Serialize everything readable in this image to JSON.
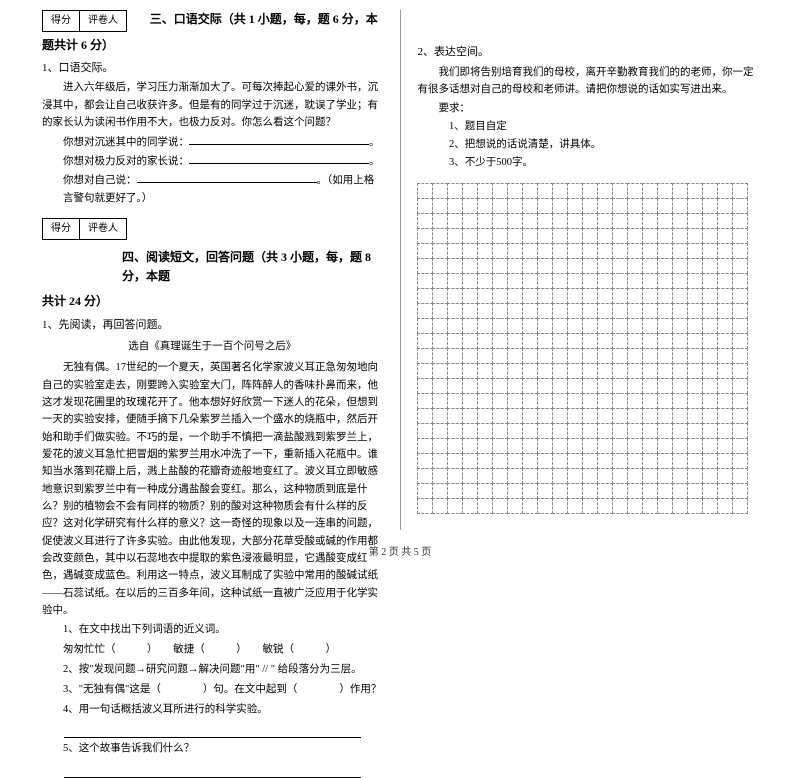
{
  "scoreBox": {
    "c1": "得分",
    "c2": "评卷人"
  },
  "section3": {
    "title": "三、口语交际（共 1 小题，每，题 6 分，本题共计 6 分）",
    "q1": "1、口语交际。",
    "intro": "进入六年级后，学习压力渐渐加大了。可每次捧起心爱的课外书，沉浸其中，都会让自己收获许多。但是有的同学过于沉迷，耽误了学业；有的家长认为读闲书作用不大，也极力反对。你怎么看这个问题？",
    "line1_label": "你想对沉迷其中的同学说：",
    "line2_label": "你想对极力反对的家长说：",
    "line3_label": "你想对自己说：",
    "line3_suffix": "。（如用上格言警句就更好了。）"
  },
  "section4": {
    "title": "四、阅读短文，回答问题（共 3 小题，每，题 8 分，本题",
    "title_cont": "共计 24 分）",
    "q1": "1、先阅读，再回答问题。",
    "subtitle": "选自《真理诞生于一百个问号之后》",
    "p1": "无独有偶。17世纪的一个夏天，英国著名化学家波义耳正急匆匆地向自己的实验室走去，刚要跨入实验室大门，阵阵醉人的香味扑鼻而来，他这才发现花圃里的玫瑰花开了。他本想好好欣赏一下迷人的花朵，但想到一天的实验安排，便随手摘下几朵紫罗兰插入一个盛水的烧瓶中，然后开始和助手们做实验。不巧的是，一个助手不慎把一滴盐酸溅到紫罗兰上，爱花的波义耳急忙把冒烟的紫罗兰用水冲洗了一下，重新插入花瓶中。谁知当水落到花瓣上后，溅上盐酸的花瓣奇迹般地变红了。波义耳立即敏感地意识到紫罗兰中有一种成分遇盐酸会变红。那么，这种物质到底是什么？别的植物会不会有同样的物质？别的酸对这种物质会有什么样的反应？这对化学研究有什么样的意义？这一奇怪的现象以及一连串的问题，促使波义耳进行了许多实验。由此他发现，大部分花草受酸或碱的作用都会改变颜色，其中以石蕊地衣中提取的紫色浸液最明显，它遇酸变成红色，遇碱变成蓝色。利用这一特点，波义耳制成了实验中常用的酸碱试纸——石蕊试纸。在以后的三百多年间，这种试纸一直被广泛应用于化学实验中。"
  },
  "subQuestions": {
    "sq1": "1、在文中找出下列词语的近义词。",
    "sq1_a": "匆匆忙忙（　　　）　　敏捷（　　　）　　敏锐（　　　）",
    "sq2_a": "2、按\"发现问题→研究问题→解决问题\"用\" // \" 给段落分为三层。",
    "sq3": "3、\"无独有偶\"这是（　　　　）句。在文中起到（　　　　）作用？",
    "sq4": "4、用一句话概括波义耳所进行的科学实验。",
    "sq5": "5、这个故事告诉我们什么？"
  },
  "rightCol": {
    "q2": "2、表达空间。",
    "intro": "我们即将告别培育我们的母校，离开辛勤教育我们的的老师，你一定有很多话想对自己的母校和老师讲。请把你想说的话如实写进出来。",
    "reqLabel": "要求：",
    "r1": "1、题目自定",
    "r2": "2、把想说的话说清楚，讲具体。",
    "r3": "3、不少于500字。"
  },
  "grid": {
    "rows": 22,
    "cols": 22
  },
  "footer": "第 2 页 共 5 页"
}
